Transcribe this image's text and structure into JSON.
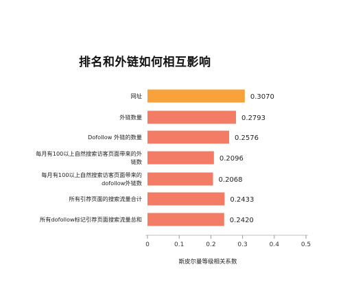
{
  "chart_data": {
    "type": "bar",
    "orientation": "horizontal",
    "title": "排名和外链如何相互影响",
    "xlabel": "斯皮尔曼等级相关系数",
    "ylabel": "",
    "categories": [
      [
        "网址"
      ],
      [
        "外链数量"
      ],
      [
        "Dofollow 外链的数量"
      ],
      [
        "每月有100以上自然搜索访客页面带来的外",
        "链数"
      ],
      [
        "每月有100以上自然搜索访客页面带来的",
        "dofollow外链数"
      ],
      [
        "所有引荐页面的搜索流量合计"
      ],
      [
        "所有dofollow标记引荐页面搜索流量总和"
      ]
    ],
    "values": [
      0.307,
      0.2793,
      0.2576,
      0.2096,
      0.2068,
      0.2433,
      0.242
    ],
    "value_labels": [
      "0.3070",
      "0.2793",
      "0.2576",
      "0.2096",
      "0.2068",
      "0.2433",
      "0.2420"
    ],
    "highlight_index": 0,
    "xlim": [
      0,
      0.5
    ],
    "xticks": [
      "0",
      "0.1",
      "0.2",
      "0.3",
      "0.4",
      "0.5"
    ],
    "grid": false,
    "colors": {
      "highlight": "#F7A23B",
      "bar": "#F27C65",
      "axis": "#cccccc"
    }
  }
}
